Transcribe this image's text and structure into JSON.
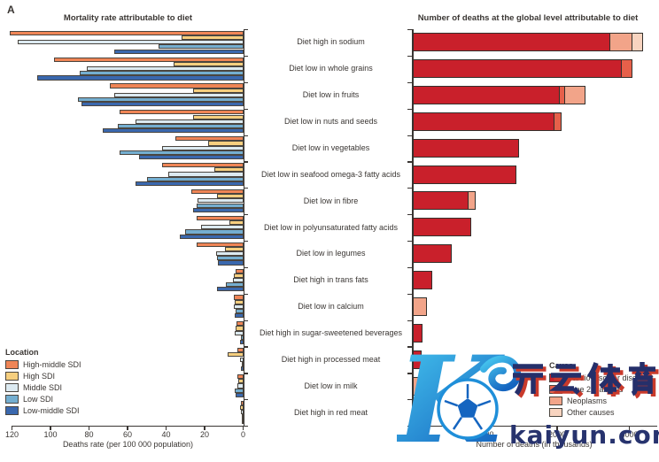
{
  "figure": {
    "panel_label": "A"
  },
  "watermark": {
    "logo_letter": "K",
    "cn_text": "开云体育",
    "domain_text": "kaiyun.com"
  },
  "chart_data": [
    {
      "type": "bar",
      "orientation": "horizontal",
      "panel": "left",
      "title": "Mortality rate attributable to diet",
      "xlabel": "Deaths rate (per 100 000 population)",
      "axis_note": "x axis reversed, 0 at right",
      "xticks": [
        120,
        100,
        80,
        60,
        40,
        20,
        0
      ],
      "xmax": 120,
      "legend_title": "Location",
      "categories": [
        "Diet high in sodium",
        "Diet low in whole grains",
        "Diet low in fruits",
        "Diet low in nuts and seeds",
        "Diet low in vegetables",
        "Diet low in seafood omega-3 fatty acids",
        "Diet low in fibre",
        "Diet low in polyunsaturated fatty acids",
        "Diet low in legumes",
        "Diet high in trans fats",
        "Diet low in calcium",
        "Diet high in sugar-sweetened beverages",
        "Diet high in processed meat",
        "Diet low in milk",
        "Diet high in red meat"
      ],
      "series": [
        {
          "name": "High-middle SDI",
          "color": "#ef8556",
          "values": [
            121,
            98,
            69,
            64,
            35,
            42,
            27,
            24,
            24,
            4,
            5,
            3.5,
            3,
            3,
            1
          ]
        },
        {
          "name": "High SDI",
          "color": "#f6cf7f",
          "values": [
            32,
            36,
            26,
            26,
            18,
            15,
            13.5,
            7,
            9.5,
            5,
            4.5,
            4,
            8,
            2.5,
            1.5
          ]
        },
        {
          "name": "Middle SDI",
          "color": "#dceaf1",
          "values": [
            117,
            81,
            67,
            56,
            42,
            39,
            23.5,
            22,
            14,
            5.5,
            5,
            4.3,
            1.5,
            3,
            1
          ]
        },
        {
          "name": "Low SDI",
          "color": "#74aed0",
          "values": [
            44,
            85,
            86,
            65,
            64,
            50,
            24,
            30,
            13.5,
            9,
            4,
            1,
            0.6,
            4.5,
            0.6
          ]
        },
        {
          "name": "Low-middle SDI",
          "color": "#3a68ae",
          "values": [
            67,
            107,
            84,
            73,
            54,
            56,
            26,
            33,
            13,
            13.5,
            4.5,
            1.5,
            1,
            4,
            0.8
          ]
        }
      ]
    },
    {
      "type": "stacked-bar",
      "orientation": "horizontal",
      "panel": "right",
      "title": "Number of deaths at the global level attributable to diet",
      "xlabel": "Number of deaths (in thousands)",
      "xticks": [
        0,
        1000,
        2000,
        3000
      ],
      "xmax": 3360,
      "legend_title": "Cause",
      "categories": [
        "Diet high in sodium",
        "Diet low in whole grains",
        "Diet low in fruits",
        "Diet low in nuts and seeds",
        "Diet low in vegetables",
        "Diet low in seafood omega-3 fatty acids",
        "Diet low in fibre",
        "Diet low in polyunsaturated fatty acids",
        "Diet low in legumes",
        "Diet high in trans fats",
        "Diet low in calcium",
        "Diet high in sugar-sweetened beverages",
        "Diet high in processed meat",
        "Diet low in milk",
        "Diet high in red meat"
      ],
      "series": [
        {
          "name": "Cardiovascular diseases",
          "color": "#c9202b",
          "values": [
            2730,
            2900,
            2040,
            1960,
            1470,
            1440,
            770,
            815,
            540,
            265,
            0,
            140,
            120,
            0,
            30
          ]
        },
        {
          "name": "Type 2 diabetes",
          "color": "#e6604a",
          "values": [
            0,
            160,
            80,
            120,
            0,
            0,
            0,
            0,
            0,
            0,
            0,
            0,
            0,
            0,
            0
          ]
        },
        {
          "name": "Neoplasms",
          "color": "#f2a489",
          "values": [
            330,
            0,
            300,
            0,
            0,
            0,
            115,
            0,
            0,
            0,
            200,
            0,
            0,
            110,
            25
          ]
        },
        {
          "name": "Other causes",
          "color": "#f8d4c0",
          "values": [
            150,
            0,
            0,
            0,
            0,
            0,
            0,
            0,
            0,
            0,
            0,
            0,
            0,
            0,
            0
          ]
        }
      ]
    }
  ]
}
